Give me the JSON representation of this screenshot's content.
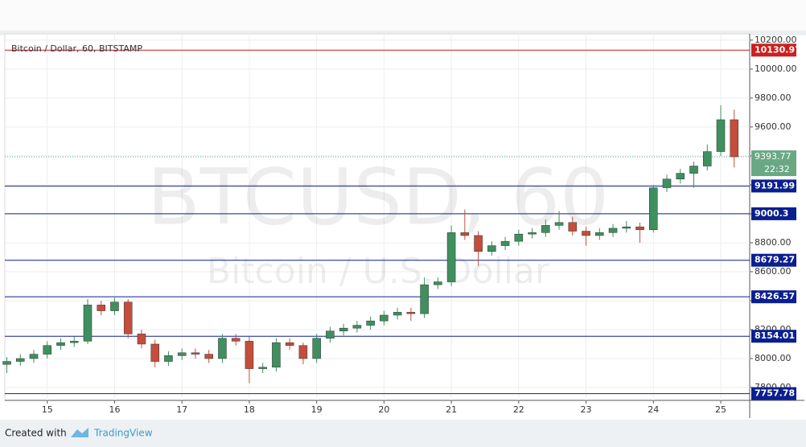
{
  "chart_data": {
    "type": "candlestick",
    "title": "Bitcoin / Dollar, 60, BITSTAMP",
    "watermark_symbol": "BTCUSD, 60",
    "watermark_name": "Bitcoin / U.S. Dollar",
    "up_color": "#3f8f5f",
    "down_color": "#c44d3c",
    "x": [
      14.4,
      14.6,
      14.8,
      15.0,
      15.2,
      15.4,
      15.6,
      15.8,
      16.0,
      16.2,
      16.4,
      16.6,
      16.8,
      17.0,
      17.2,
      17.4,
      17.6,
      17.8,
      18.0,
      18.2,
      18.4,
      18.6,
      18.8,
      19.0,
      19.2,
      19.4,
      19.6,
      19.8,
      20.0,
      20.2,
      20.4,
      20.6,
      20.8,
      21.0,
      21.2,
      21.4,
      21.6,
      21.8,
      22.0,
      22.2,
      22.4,
      22.6,
      22.8,
      23.0,
      23.2,
      23.4,
      23.6,
      23.8,
      24.0,
      24.2,
      24.4,
      24.6,
      24.8,
      25.0,
      25.2
    ],
    "open": [
      7960,
      7980,
      8000,
      8030,
      8090,
      8110,
      8120,
      8370,
      8330,
      8390,
      8170,
      8100,
      7980,
      8020,
      8040,
      8030,
      8000,
      8140,
      8120,
      7930,
      7940,
      8110,
      8090,
      8000,
      8140,
      8190,
      8210,
      8230,
      8260,
      8300,
      8320,
      8310,
      8510,
      8530,
      8870,
      8850,
      8740,
      8780,
      8810,
      8860,
      8870,
      8920,
      8940,
      8880,
      8850,
      8870,
      8900,
      8910,
      8890,
      9180,
      9240,
      9280,
      9330,
      9430,
      9650
    ],
    "high": [
      8010,
      8030,
      8060,
      8120,
      8140,
      8150,
      8410,
      8400,
      8420,
      8410,
      8200,
      8130,
      8050,
      8070,
      8070,
      8060,
      8170,
      8170,
      8150,
      7970,
      8140,
      8140,
      8110,
      8170,
      8220,
      8240,
      8260,
      8290,
      8330,
      8350,
      8350,
      8560,
      8560,
      8920,
      9030,
      8880,
      8810,
      8840,
      8890,
      8900,
      8960,
      9020,
      8980,
      8910,
      8900,
      8930,
      8950,
      8940,
      9200,
      9270,
      9310,
      9360,
      9480,
      9750,
      9720
    ],
    "low": [
      7900,
      7950,
      7970,
      8000,
      8060,
      8080,
      8100,
      8300,
      8300,
      8140,
      8070,
      7940,
      7950,
      7990,
      8000,
      7970,
      7970,
      8090,
      7830,
      7900,
      7910,
      8060,
      7960,
      7970,
      8110,
      8160,
      8180,
      8200,
      8230,
      8270,
      8260,
      8280,
      8480,
      8500,
      8820,
      8640,
      8710,
      8750,
      8780,
      8830,
      8840,
      8890,
      8850,
      8780,
      8820,
      8840,
      8870,
      8800,
      8870,
      9150,
      9210,
      9180,
      9300,
      9400,
      9320
    ],
    "close": [
      7980,
      8000,
      8030,
      8090,
      8110,
      8120,
      8370,
      8330,
      8390,
      8170,
      8100,
      7980,
      8020,
      8040,
      8030,
      8000,
      8140,
      8120,
      7930,
      7940,
      8110,
      8090,
      8000,
      8140,
      8190,
      8210,
      8230,
      8260,
      8300,
      8320,
      8310,
      8510,
      8530,
      8870,
      8850,
      8740,
      8780,
      8810,
      8860,
      8870,
      8920,
      8940,
      8880,
      8850,
      8870,
      8900,
      8910,
      8890,
      9180,
      9240,
      9280,
      9330,
      9430,
      9650,
      9394
    ],
    "xlim": [
      14.37,
      25.43
    ],
    "xticks": [
      15,
      16,
      17,
      18,
      19,
      20,
      21,
      22,
      23,
      24,
      25
    ],
    "ylim": [
      7711,
      10244
    ],
    "yticks": [
      {
        "value": 7800,
        "label": "7800.00"
      },
      {
        "value": 8000,
        "label": "8000.00"
      },
      {
        "value": 8200,
        "label": "8200.00"
      },
      {
        "value": 8400,
        "label": "8400.00"
      },
      {
        "value": 8600,
        "label": "8600.00"
      },
      {
        "value": 8800,
        "label": "8800.00"
      },
      {
        "value": 9000,
        "label": "9000.00"
      },
      {
        "value": 9200,
        "label": "9200.00"
      },
      {
        "value": 9400,
        "label": "9400.00"
      },
      {
        "value": 9600,
        "label": "9600.00"
      },
      {
        "value": 9800,
        "label": "9800.00"
      },
      {
        "value": 10000,
        "label": "10000.00"
      },
      {
        "value": 10200,
        "label": "10200.00"
      }
    ],
    "grid": true,
    "levels": [
      {
        "value": 10130.97,
        "color": "#cc1f1f"
      },
      {
        "value": 9191.99,
        "color": "#0b1f8f"
      },
      {
        "value": 9000.3,
        "color": "#0b1f8f"
      },
      {
        "value": 8679.27,
        "color": "#0b1f8f"
      },
      {
        "value": 8426.57,
        "color": "#0b1f8f"
      },
      {
        "value": 8154.01,
        "color": "#0b1f8f"
      },
      {
        "value": 7757.78,
        "color": "#0b1f8f"
      }
    ],
    "last_price": 9393.77,
    "last_price_color": "#6aa884",
    "countdown": "22:32"
  },
  "footer": {
    "created_with": "Created with",
    "brand": "TradingView"
  }
}
